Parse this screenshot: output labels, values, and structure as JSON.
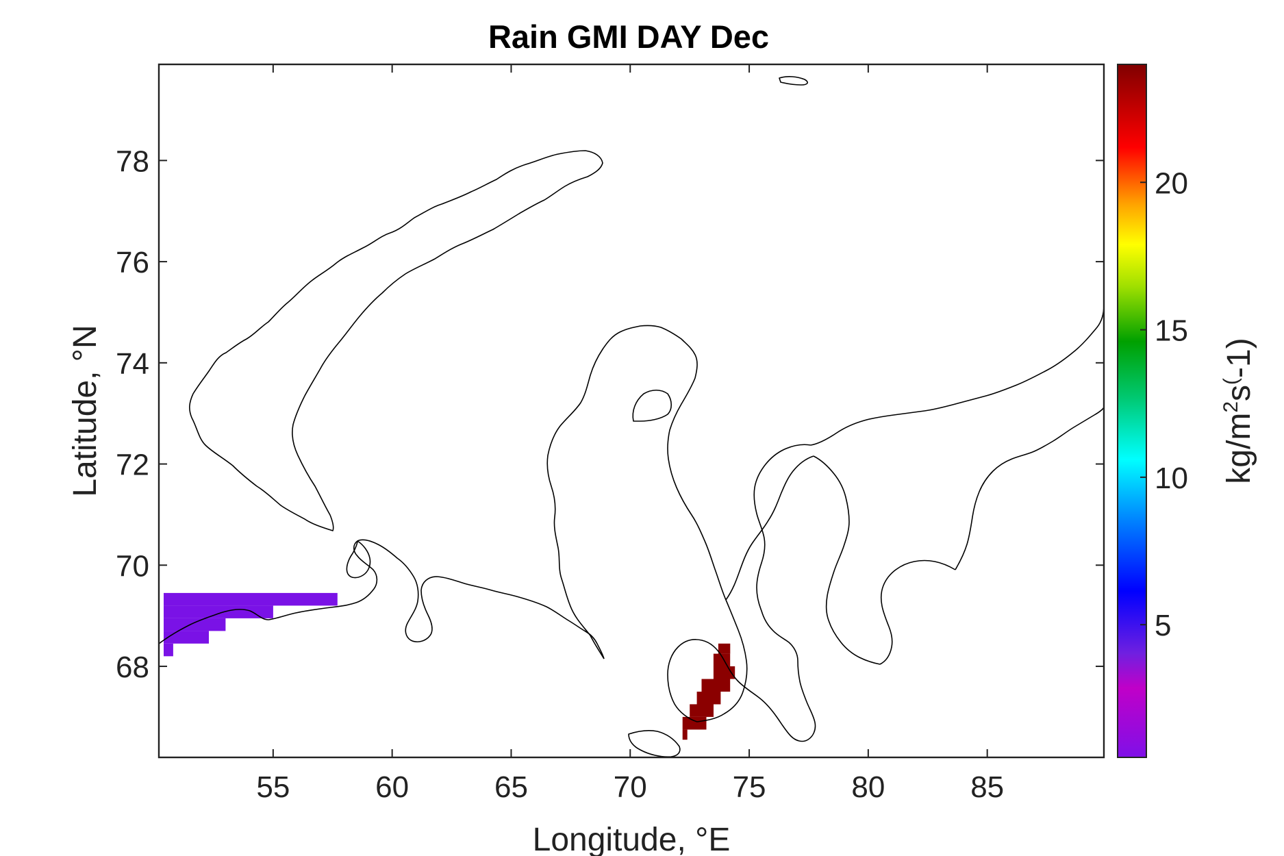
{
  "chart_data": {
    "type": "heatmap",
    "title": "Rain GMI DAY Dec",
    "xlabel": "Longitude, °E",
    "ylabel": "Latitude, °N",
    "xlim": [
      50.2,
      89.9
    ],
    "ylim": [
      66.2,
      79.9
    ],
    "xticks": [
      55,
      60,
      65,
      70,
      75,
      80,
      85
    ],
    "yticks": [
      68,
      70,
      72,
      74,
      76,
      78
    ],
    "colorbar": {
      "label": "kg/m²s(-1)",
      "label_parts": {
        "base1": "kg/m",
        "sup1": "2",
        "base2": "s",
        "sup2": "(",
        "base3": "-1)"
      },
      "range": [
        0.5,
        24
      ],
      "ticks": [
        5,
        10,
        15,
        20
      ],
      "colormap": "jet-like (purple → blue → cyan → green → yellow → red → dark red)"
    },
    "cells": [
      {
        "lon_range": [
          50.4,
          57.7
        ],
        "lat_range": [
          69.2,
          69.45
        ],
        "value": 2
      },
      {
        "lon_range": [
          50.4,
          55.0
        ],
        "lat_range": [
          68.95,
          69.2
        ],
        "value": 2
      },
      {
        "lon_range": [
          50.4,
          53.0
        ],
        "lat_range": [
          68.7,
          68.95
        ],
        "value": 2
      },
      {
        "lon_range": [
          50.4,
          52.3
        ],
        "lat_range": [
          68.45,
          68.7
        ],
        "value": 2
      },
      {
        "lon_range": [
          50.4,
          50.8
        ],
        "lat_range": [
          68.2,
          68.45
        ],
        "value": 2
      },
      {
        "lon_range": [
          73.7,
          74.2
        ],
        "lat_range": [
          68.25,
          68.45
        ],
        "value": 24
      },
      {
        "lon_range": [
          73.5,
          74.2
        ],
        "lat_range": [
          68.0,
          68.25
        ],
        "value": 24
      },
      {
        "lon_range": [
          73.5,
          74.4
        ],
        "lat_range": [
          67.75,
          68.0
        ],
        "value": 24
      },
      {
        "lon_range": [
          73.0,
          74.2
        ],
        "lat_range": [
          67.5,
          67.75
        ],
        "value": 24
      },
      {
        "lon_range": [
          72.8,
          73.8
        ],
        "lat_range": [
          67.25,
          67.5
        ],
        "value": 24
      },
      {
        "lon_range": [
          72.5,
          73.5
        ],
        "lat_range": [
          67.0,
          67.25
        ],
        "value": 24
      },
      {
        "lon_range": [
          72.2,
          73.2
        ],
        "lat_range": [
          66.75,
          67.0
        ],
        "value": 24
      },
      {
        "lon_range": [
          72.2,
          72.4
        ],
        "lat_range": [
          66.55,
          66.75
        ],
        "value": 24
      }
    ]
  }
}
